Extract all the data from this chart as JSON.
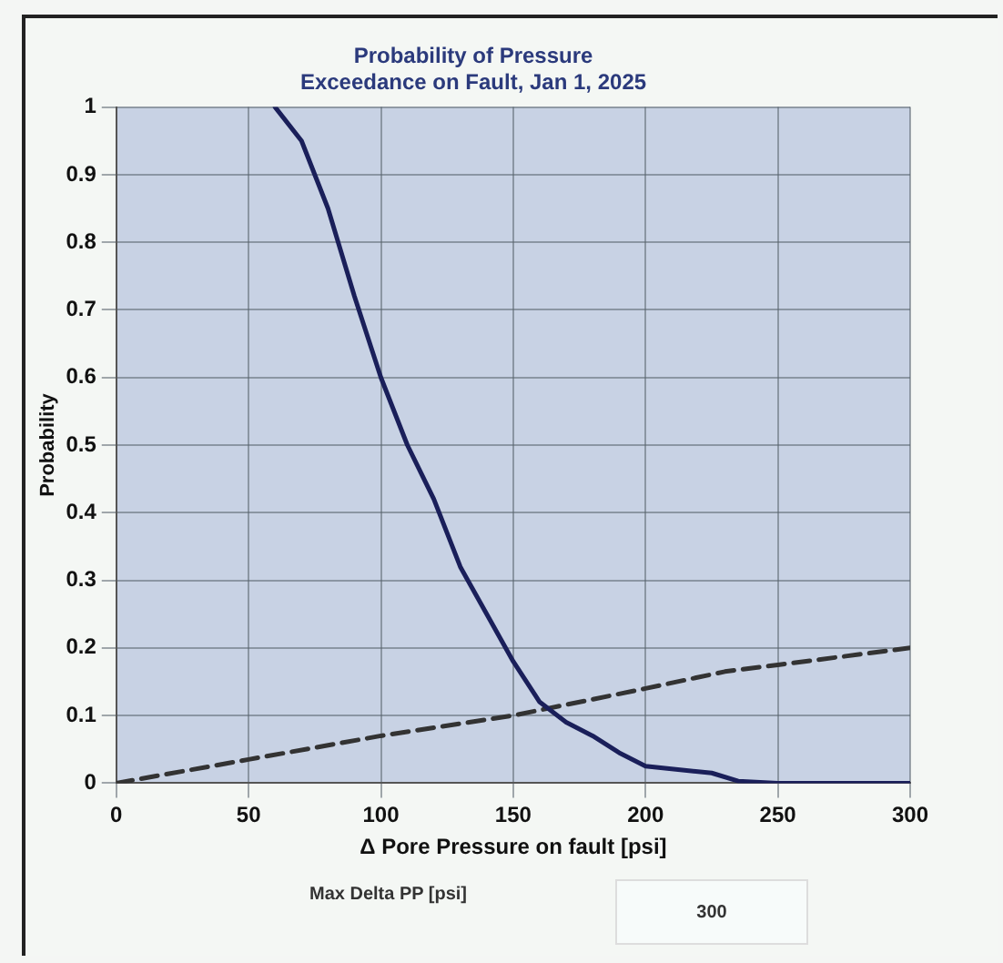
{
  "chart_data": {
    "type": "line",
    "title": "Probability of Pressure\nExceedance on Fault, Jan 1, 2025",
    "xlabel": "Δ Pore Pressure on fault [psi]",
    "ylabel": "Probability",
    "series": [
      {
        "color": "#1a1f5a",
        "line_style": "solid",
        "x": [
          60,
          70,
          80,
          90,
          100,
          110,
          120,
          130,
          140,
          150,
          160,
          170,
          180,
          190,
          200,
          225,
          235,
          250,
          300
        ],
        "values": [
          1,
          0.95,
          0.85,
          0.72,
          0.6,
          0.5,
          0.42,
          0.32,
          0.25,
          0.18,
          0.12,
          0.09,
          0.07,
          0.045,
          0.025,
          0.015,
          0.003,
          0,
          0
        ]
      },
      {
        "color": "#333333",
        "line_style": "dashed",
        "x": [
          0,
          50,
          100,
          150,
          200,
          230,
          250,
          300
        ],
        "values": [
          0,
          0.035,
          0.07,
          0.1,
          0.14,
          0.165,
          0.175,
          0.2
        ]
      }
    ],
    "xlim": [
      0,
      300
    ],
    "xticks": [
      0,
      50,
      100,
      150,
      200,
      250,
      300
    ],
    "ylim": [
      0,
      1
    ],
    "yticks": [
      0,
      0.1,
      0.2,
      0.3,
      0.4,
      0.5,
      0.6,
      0.7,
      0.8,
      0.9,
      1
    ],
    "grid": true,
    "legend": false,
    "marker": "none",
    "annotations": [
      "Max Delta PP [psi]",
      "300"
    ]
  }
}
